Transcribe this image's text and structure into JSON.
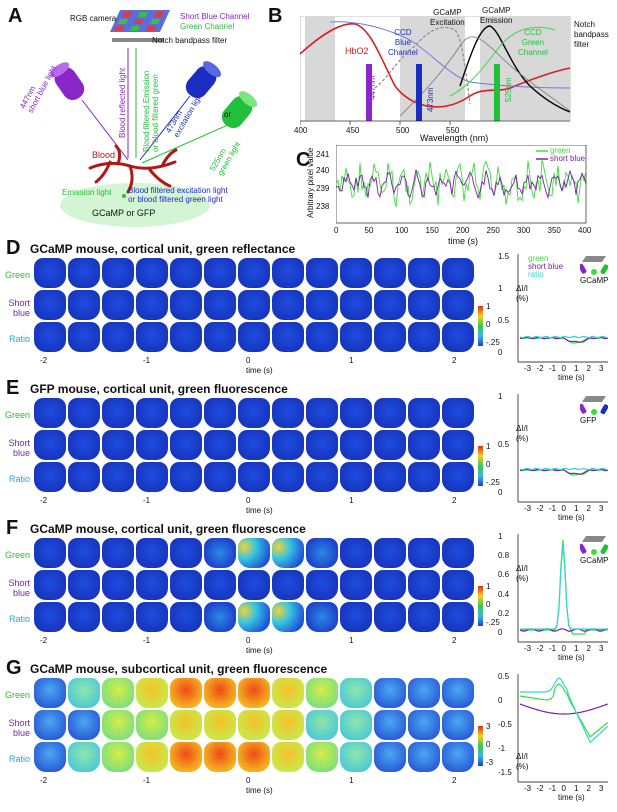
{
  "panelA": {
    "letter": "A",
    "rgb_camera": "RGB camera",
    "short_blue_channel": "Short Blue Channel",
    "green_channel": "Green Channel",
    "notch_filter": "Notch bandpass filter",
    "light_447": "447nm\nshort blue light",
    "light_473": "473nm\nexcitation light",
    "light_525": "525nm\ngreen light",
    "or": "or",
    "blood_reflected": "Blood reflected light",
    "blood_filtered_emission": "Blood filtered Emission\nor blood filtered green",
    "blood": "Blood",
    "emission_light": "Emission light",
    "blood_filtered_excitation": "Blood filtered excitation light\nor blood filtered green light",
    "gcamp_or_gfp": "GCaMP or GFP"
  },
  "panelB": {
    "letter": "B",
    "hbo2": "HbO2",
    "ccd_blue": "CCD\nBlue\nChannel",
    "gcamp_excitation": "GCaMP\nExcitation",
    "gcamp_emission": "GCaMP\nEmission",
    "ccd_green": "CCD\nGreen\nChannel",
    "notch": "Notch\nbandpass\nfilter",
    "bar_447": "447nm",
    "bar_473": "473nm",
    "bar_525": "525nm",
    "xlabel": "Wavelength (nm)",
    "xticks": [
      "400",
      "450",
      "500",
      "550"
    ]
  },
  "panelC": {
    "letter": "C",
    "ylabel": "Arbitrary pixel value",
    "xlabel": "time (s)",
    "yticks": [
      "241",
      "240",
      "239",
      "238"
    ],
    "xticks": [
      "0",
      "50",
      "100",
      "150",
      "200",
      "250",
      "300",
      "350",
      "400"
    ],
    "legend_green": "green",
    "legend_blue": "short blue"
  },
  "panelD": {
    "letter": "D",
    "title": "GCaMP mouse, cortical unit, green reflectance",
    "rows": [
      "Green",
      "Short blue",
      "Ratio"
    ],
    "xticks": [
      "-2",
      "-1",
      "0",
      "1",
      "2"
    ],
    "xlabel": "time (s)",
    "cbar": [
      "1",
      "0",
      "-.25"
    ],
    "side_ylabel": "ΔI/I\n(%)",
    "side_yticks": [
      "1.5",
      "1",
      "0.5",
      "0"
    ],
    "side_xticks": [
      "-3",
      "-2",
      "-1",
      "0",
      "1",
      "2",
      "3"
    ],
    "side_xlabel": "time (s)",
    "legend": [
      "green",
      "short blue",
      "ratio"
    ],
    "icon_label": "GCaMP"
  },
  "panelE": {
    "letter": "E",
    "title": "GFP mouse, cortical unit, green fluorescence",
    "rows": [
      "Green",
      "Short blue",
      "Ratio"
    ],
    "xticks": [
      "-2",
      "-1",
      "0",
      "1",
      "2"
    ],
    "xlabel": "time (s)",
    "cbar": [
      "1",
      "0",
      "-.25"
    ],
    "side_ylabel": "ΔI/I\n(%)",
    "side_yticks": [
      "1",
      "0.5",
      "0"
    ],
    "side_xticks": [
      "-3",
      "-2",
      "-1",
      "0",
      "1",
      "2",
      "3"
    ],
    "side_xlabel": "time (s)",
    "icon_label": "GFP"
  },
  "panelF": {
    "letter": "F",
    "title": "GCaMP mouse, cortical unit, green fluorescence",
    "rows": [
      "Green",
      "Short blue",
      "Ratio"
    ],
    "xticks": [
      "-2",
      "-1",
      "0",
      "1",
      "2"
    ],
    "xlabel": "time (s)",
    "cbar": [
      "1",
      "0",
      "-.25"
    ],
    "side_ylabel": "ΔI/I\n(%)",
    "side_yticks": [
      "1",
      "0.8",
      "0.6",
      "0.4",
      "0.2",
      "0"
    ],
    "side_xticks": [
      "-3",
      "-2",
      "-1",
      "0",
      "1",
      "2",
      "3"
    ],
    "side_xlabel": "time (s)",
    "icon_label": "GCaMP"
  },
  "panelG": {
    "letter": "G",
    "title": "GCaMP mouse, subcortical unit, green fluorescence",
    "rows": [
      "Green",
      "Short blue",
      "Ratio"
    ],
    "xticks": [
      "-2",
      "-1",
      "0",
      "1",
      "2"
    ],
    "xlabel": "time (s)",
    "cbar": [
      "3",
      "0",
      "-3"
    ],
    "side_ylabel": "ΔI/I\n(%)",
    "side_yticks": [
      "0.5",
      "0",
      "-0.5",
      "-1",
      "-1.5"
    ],
    "side_xticks": [
      "-3",
      "-2",
      "-1",
      "0",
      "1",
      "2",
      "3"
    ],
    "side_xlabel": "time (s)"
  },
  "colors": {
    "green": "#3ddc3d",
    "short_blue": "#7a22a8",
    "ratio": "#33d6d6",
    "hbo2": "#d42020",
    "heat_low": "#1f3fd0",
    "heat_high": "#e52a10"
  }
}
